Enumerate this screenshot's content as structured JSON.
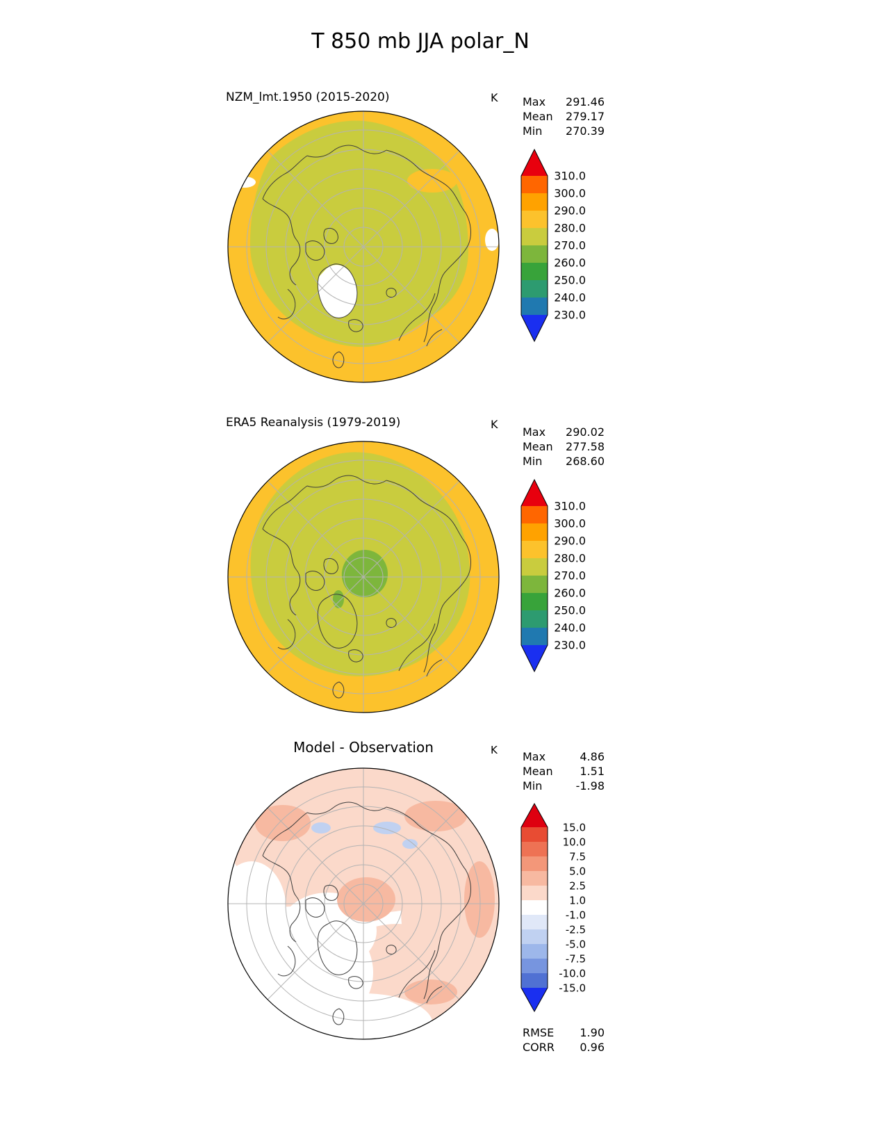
{
  "figure_title": "T 850 mb JJA polar_N",
  "background_color": "#ffffff",
  "graticule_color": "#b3b3b3",
  "coastline_color": "#3c3c3c",
  "missing_color": "#ffffff",
  "panels": [
    {
      "id": "model",
      "title": "NZM_lmt.1950 (2015-2020)",
      "units": "K",
      "stats": [
        {
          "label": "Max",
          "value": "291.46"
        },
        {
          "label": "Mean",
          "value": "279.17"
        },
        {
          "label": "Min",
          "value": "270.39"
        }
      ],
      "colorbar": {
        "tick_labels": [
          "310.0",
          "300.0",
          "290.0",
          "280.0",
          "270.0",
          "260.0",
          "250.0",
          "240.0",
          "230.0"
        ],
        "segment_colors": [
          "#ff6600",
          "#ffa200",
          "#fcc22c",
          "#c9cc3e",
          "#7db63c",
          "#38a33a",
          "#2d9b70",
          "#2079b0"
        ],
        "extend_high_color": "#e8000e",
        "extend_low_color": "#1a2ff0"
      }
    },
    {
      "id": "observation",
      "title": "ERA5 Reanalysis (1979-2019)",
      "units": "K",
      "stats": [
        {
          "label": "Max",
          "value": "290.02"
        },
        {
          "label": "Mean",
          "value": "277.58"
        },
        {
          "label": "Min",
          "value": "268.60"
        }
      ],
      "colorbar": {
        "tick_labels": [
          "310.0",
          "300.0",
          "290.0",
          "280.0",
          "270.0",
          "260.0",
          "250.0",
          "240.0",
          "230.0"
        ],
        "segment_colors": [
          "#ff6600",
          "#ffa200",
          "#fcc22c",
          "#c9cc3e",
          "#7db63c",
          "#38a33a",
          "#2d9b70",
          "#2079b0"
        ],
        "extend_high_color": "#e8000e",
        "extend_low_color": "#1a2ff0"
      }
    },
    {
      "id": "difference",
      "title": "Model - Observation",
      "units": "K",
      "stats": [
        {
          "label": "Max",
          "value": "4.86"
        },
        {
          "label": "Mean",
          "value": "1.51"
        },
        {
          "label": "Min",
          "value": "-1.98"
        }
      ],
      "colorbar": {
        "tick_labels": [
          "15.0",
          "10.0",
          "7.5",
          "5.0",
          "2.5",
          "1.0",
          "-1.0",
          "-2.5",
          "-5.0",
          "-7.5",
          "-10.0",
          "-15.0"
        ],
        "segment_colors": [
          "#e84c33",
          "#ee7254",
          "#f39779",
          "#f7b9a1",
          "#fbd9ca",
          "#ffffff",
          "#e0e8f8",
          "#c0d1f1",
          "#9db7ea",
          "#7795df",
          "#5071d3"
        ],
        "extend_high_color": "#de0010",
        "extend_low_color": "#1a2ff0"
      },
      "extra_stats": [
        {
          "label": "RMSE",
          "value": "1.90"
        },
        {
          "label": "CORR",
          "value": "0.96"
        }
      ]
    }
  ],
  "chart_data": [
    {
      "type": "heatmap",
      "subtype": "north_polar_stereographic_map",
      "panel": "model",
      "title": "NZM_lmt.1950 (2015-2020)",
      "variable": "T 850 mb",
      "season": "JJA",
      "region": "polar_N",
      "units": "K",
      "stats": {
        "max": 291.46,
        "mean": 279.17,
        "min": 270.39
      },
      "levels": [
        230.0,
        240.0,
        250.0,
        260.0,
        270.0,
        280.0,
        290.0,
        300.0,
        310.0
      ],
      "field_summary": "Arctic interior mostly 270-280 K, outer ring of 280-290 K at lower latitudes, blank (no-data) patch over the Greenland ice sheet"
    },
    {
      "type": "heatmap",
      "subtype": "north_polar_stereographic_map",
      "panel": "observation",
      "title": "ERA5 Reanalysis (1979-2019)",
      "variable": "T 850 mb",
      "season": "JJA",
      "region": "polar_N",
      "units": "K",
      "stats": {
        "max": 290.02,
        "mean": 277.58,
        "min": 268.6
      },
      "levels": [
        230.0,
        240.0,
        250.0,
        260.0,
        270.0,
        280.0,
        290.0,
        300.0,
        310.0
      ],
      "field_summary": "Interior mostly 270-280 K with a 260-270 K patch near the pole and over Greenland, 280-290 K ring at lower latitudes"
    },
    {
      "type": "heatmap",
      "subtype": "north_polar_stereographic_map",
      "panel": "difference",
      "title": "Model - Observation",
      "variable": "T 850 mb",
      "season": "JJA",
      "region": "polar_N",
      "units": "K",
      "stats": {
        "max": 4.86,
        "mean": 1.51,
        "min": -1.98,
        "rmse": 1.9,
        "corr": 0.96
      },
      "levels": [
        -15.0,
        -10.0,
        -7.5,
        -5.0,
        -2.5,
        -1.0,
        1.0,
        2.5,
        5.0,
        7.5,
        10.0,
        15.0
      ],
      "field_summary": "Mostly +1 to +2.5 K warm bias, patches of +2.5 to +5 K near the map edge and pole, near-zero (-1 to +1 K) over lower-left sector, small -1 to -5 K cool spots north of Siberia"
    }
  ]
}
